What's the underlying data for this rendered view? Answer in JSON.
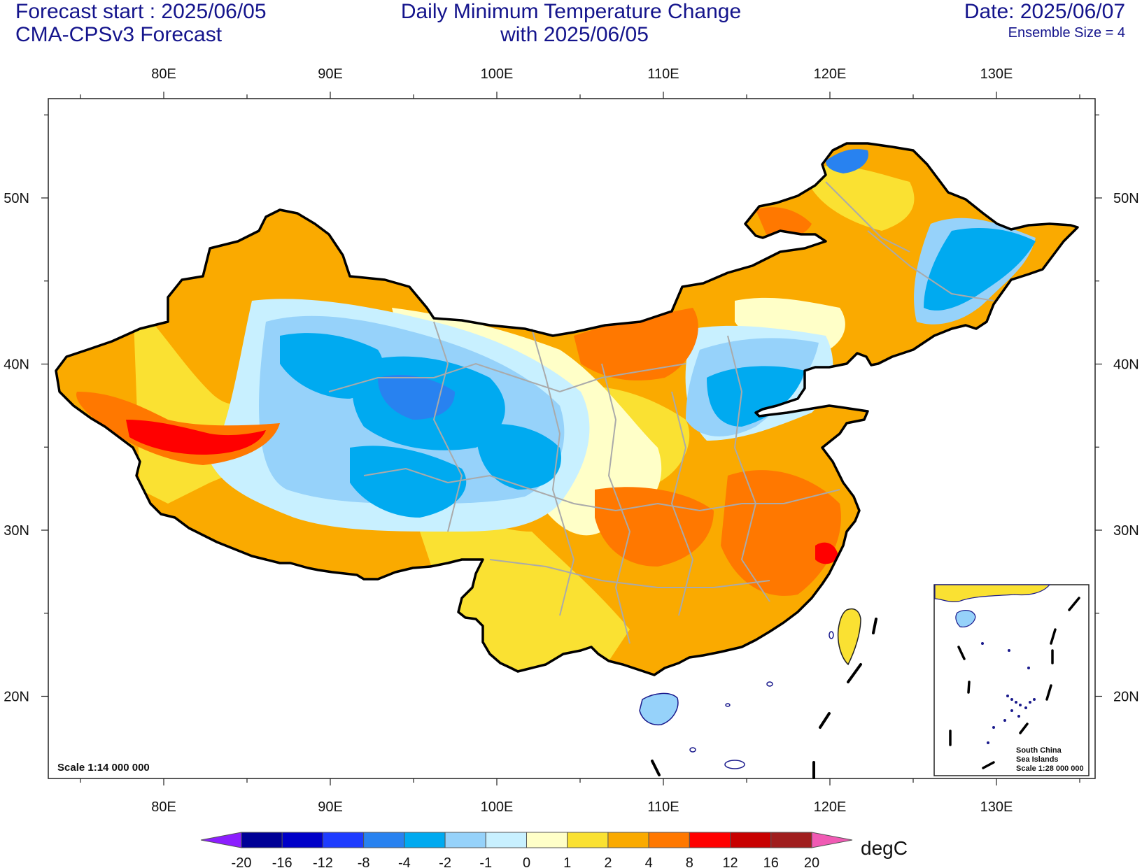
{
  "header": {
    "forecast_start": "Forecast start : 2025/06/05",
    "model": "CMA-CPSv3 Forecast",
    "title_line1": "Daily Minimum Temperature Change",
    "title_line2": "with 2025/06/05",
    "date": "Date: 2025/06/07",
    "ensemble": "Ensemble Size = 4"
  },
  "map": {
    "lon_ticks": [
      {
        "value": 80,
        "label": "80E"
      },
      {
        "value": 90,
        "label": "90E"
      },
      {
        "value": 100,
        "label": "100E"
      },
      {
        "value": 110,
        "label": "110E"
      },
      {
        "value": 120,
        "label": "120E"
      },
      {
        "value": 130,
        "label": "130E"
      }
    ],
    "lat_ticks": [
      {
        "value": 50,
        "label": "50N"
      },
      {
        "value": 40,
        "label": "40N"
      },
      {
        "value": 30,
        "label": "30N"
      },
      {
        "value": 20,
        "label": "20N"
      }
    ],
    "scale_text": "Scale 1:14 000 000",
    "inset": {
      "line1": "South China",
      "line2": "Sea Islands",
      "line3": "Scale 1:28 000 000"
    }
  },
  "colorbar": {
    "unit": "degC",
    "labels": [
      "-20",
      "-16",
      "-12",
      "-8",
      "-4",
      "-2",
      "-1",
      "0",
      "1",
      "2",
      "4",
      "8",
      "12",
      "16",
      "20"
    ],
    "colors": [
      "#000096",
      "#0000c8",
      "#1e3cff",
      "#2882f0",
      "#00aaf0",
      "#96d2fa",
      "#c8f0ff",
      "#ffffc8",
      "#fae132",
      "#faaa00",
      "#ff7800",
      "#ff0000",
      "#c80000",
      "#a01e1e"
    ],
    "low_arrow_color": "#8c1eff",
    "high_arrow_color": "#f05ab4"
  },
  "field_colors": {
    "strong_warm": "#ff0000",
    "warm": "#ff7800",
    "moderate_warm": "#faaa00",
    "slight_warm": "#fae132",
    "neutral": "#ffffc8",
    "slight_cool": "#c8f0ff",
    "cool": "#96d2fa",
    "strong_cool": "#00aaf0",
    "stronger_cool": "#2882f0"
  }
}
